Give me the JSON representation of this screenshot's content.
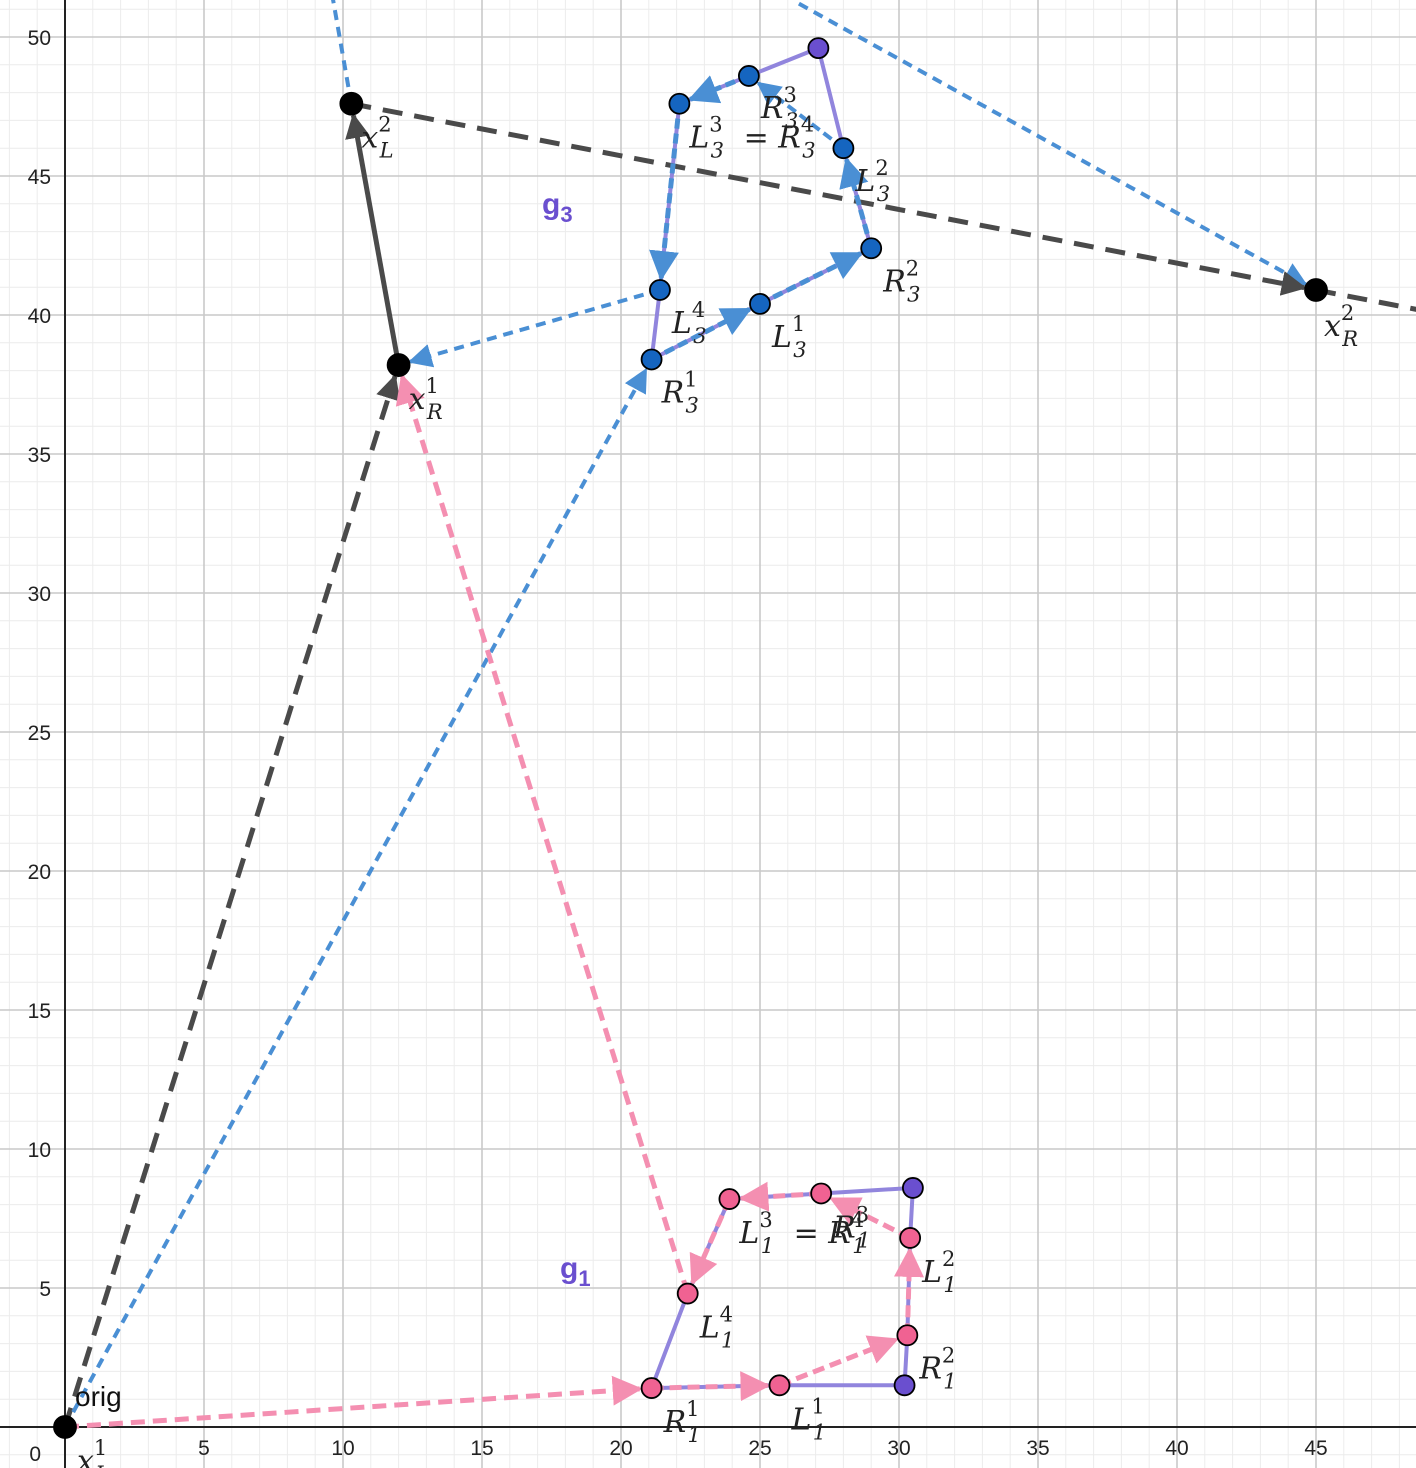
{
  "colors": {
    "background": "#ffffff",
    "grid_minor": "#ececec",
    "grid_major": "#c9c9c9",
    "axis": "#222222",
    "black": "#000000",
    "arrow_dark": "#4a4a4a",
    "blue_point": "#1565c0",
    "blue_dash": "#4a8fd4",
    "pink_point": "#f06292",
    "pink_dash": "#f48fb1",
    "purple_point": "#6a4fcf",
    "purple_line": "#9185dd",
    "group_label": "#6a4fcf"
  },
  "axes": {
    "x_ticks": [
      "5",
      "10",
      "15",
      "20",
      "25",
      "30",
      "35",
      "40",
      "45"
    ],
    "y_ticks": [
      "5",
      "10",
      "15",
      "20",
      "25",
      "30",
      "35",
      "40",
      "45",
      "50"
    ],
    "origin_label": "0"
  },
  "group_labels": [
    {
      "id": "g3",
      "base": "g",
      "sub": "3"
    },
    {
      "id": "g1",
      "base": "g",
      "sub": "1"
    }
  ],
  "origin_point": {
    "x": 0,
    "y": 0,
    "label": "orig"
  },
  "black_points": [
    {
      "id": "xL1",
      "x": 0,
      "y": 0,
      "base": "x",
      "sup": "1",
      "sub": "L"
    },
    {
      "id": "xR1",
      "x": 12,
      "y": 38.2,
      "base": "x",
      "sup": "1",
      "sub": "R"
    },
    {
      "id": "xL2",
      "x": 10.3,
      "y": 47.6,
      "base": "x",
      "sup": "2",
      "sub": "L"
    },
    {
      "id": "xR2",
      "x": 45,
      "y": 40.9,
      "base": "x",
      "sup": "2",
      "sub": "R"
    }
  ],
  "blue_points": [
    {
      "id": "R31",
      "x": 21.1,
      "y": 38.4,
      "base": "R",
      "sup": "1",
      "sub": "3"
    },
    {
      "id": "L31",
      "x": 25,
      "y": 40.4,
      "base": "L",
      "sup": "1",
      "sub": "3"
    },
    {
      "id": "R32",
      "x": 29,
      "y": 42.4,
      "base": "R",
      "sup": "2",
      "sub": "3"
    },
    {
      "id": "L32",
      "x": 28,
      "y": 46,
      "base": "L",
      "sup": "2",
      "sub": "3"
    },
    {
      "id": "R33",
      "x": 24.6,
      "y": 48.6,
      "base": "R",
      "sup": "3",
      "sub": "3"
    },
    {
      "id": "L33",
      "x": 22.1,
      "y": 47.6,
      "base": "L",
      "sup": "3",
      "sub": "3",
      "eq_base": "R",
      "eq_sup": "4",
      "eq_sub": "3"
    },
    {
      "id": "L34",
      "x": 21.4,
      "y": 40.9,
      "base": "L",
      "sup": "4",
      "sub": "3"
    }
  ],
  "pink_points": [
    {
      "id": "R11",
      "x": 21.1,
      "y": 1.4,
      "base": "R",
      "sup": "1",
      "sub": "1"
    },
    {
      "id": "L11",
      "x": 25.7,
      "y": 1.5,
      "base": "L",
      "sup": "1",
      "sub": "1"
    },
    {
      "id": "R12",
      "x": 30.3,
      "y": 3.3,
      "base": "R",
      "sup": "2",
      "sub": "1"
    },
    {
      "id": "L12",
      "x": 30.4,
      "y": 6.8,
      "base": "L",
      "sup": "2",
      "sub": "1"
    },
    {
      "id": "R13",
      "x": 27.2,
      "y": 8.4,
      "base": "R",
      "sup": "3",
      "sub": "1"
    },
    {
      "id": "L13",
      "x": 23.9,
      "y": 8.2,
      "base": "L",
      "sup": "3",
      "sub": "1",
      "eq_base": "R",
      "eq_sup": "4",
      "eq_sub": "1"
    },
    {
      "id": "L14",
      "x": 22.4,
      "y": 4.8,
      "base": "L",
      "sup": "4",
      "sub": "1"
    }
  ],
  "purple_points": [
    {
      "id": "P3",
      "x": 27.1,
      "y": 49.6
    },
    {
      "id": "P1a",
      "x": 30.5,
      "y": 8.6
    },
    {
      "id": "P1b",
      "x": 30.2,
      "y": 1.5
    }
  ]
}
